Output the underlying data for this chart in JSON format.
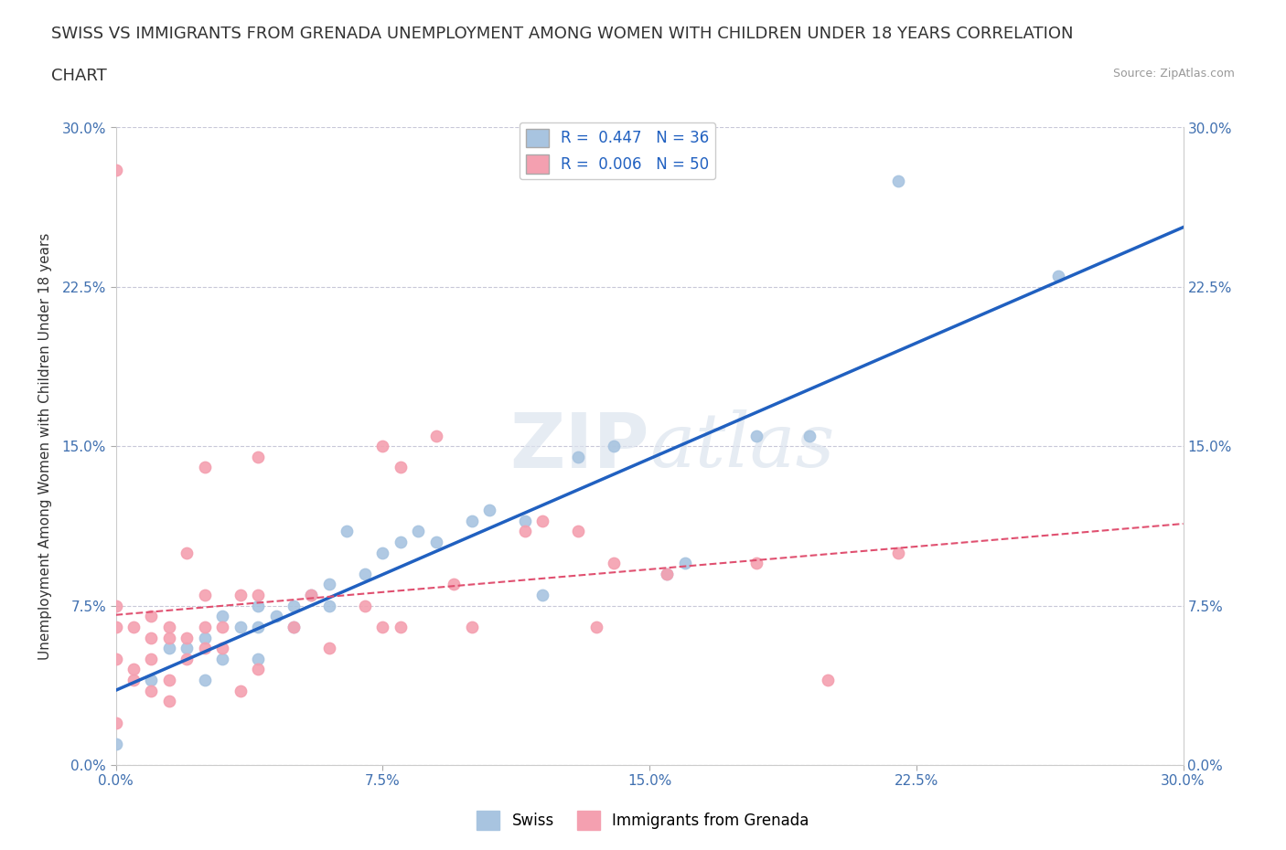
{
  "title_line1": "SWISS VS IMMIGRANTS FROM GRENADA UNEMPLOYMENT AMONG WOMEN WITH CHILDREN UNDER 18 YEARS CORRELATION",
  "title_line2": "CHART",
  "source_text": "Source: ZipAtlas.com",
  "ylabel": "Unemployment Among Women with Children Under 18 years",
  "xlim": [
    0.0,
    0.3
  ],
  "ylim": [
    0.0,
    0.3
  ],
  "xtick_labels": [
    "0.0%",
    "7.5%",
    "15.0%",
    "22.5%",
    "30.0%"
  ],
  "xtick_vals": [
    0.0,
    0.075,
    0.15,
    0.225,
    0.3
  ],
  "ytick_labels": [
    "0.0%",
    "7.5%",
    "15.0%",
    "22.5%",
    "30.0%"
  ],
  "ytick_vals": [
    0.0,
    0.075,
    0.15,
    0.225,
    0.3
  ],
  "swiss_color": "#a8c4e0",
  "grenada_color": "#f4a0b0",
  "swiss_line_color": "#2060c0",
  "grenada_line_color": "#e05070",
  "swiss_R": 0.447,
  "swiss_N": 36,
  "grenada_R": 0.006,
  "grenada_N": 50,
  "swiss_x": [
    0.0,
    0.01,
    0.015,
    0.02,
    0.025,
    0.025,
    0.03,
    0.03,
    0.035,
    0.04,
    0.04,
    0.04,
    0.045,
    0.05,
    0.05,
    0.055,
    0.06,
    0.06,
    0.065,
    0.07,
    0.075,
    0.08,
    0.085,
    0.09,
    0.1,
    0.105,
    0.115,
    0.12,
    0.13,
    0.14,
    0.155,
    0.16,
    0.18,
    0.195,
    0.22,
    0.265
  ],
  "swiss_y": [
    0.01,
    0.04,
    0.055,
    0.055,
    0.04,
    0.06,
    0.05,
    0.07,
    0.065,
    0.05,
    0.065,
    0.075,
    0.07,
    0.065,
    0.075,
    0.08,
    0.075,
    0.085,
    0.11,
    0.09,
    0.1,
    0.105,
    0.11,
    0.105,
    0.115,
    0.12,
    0.115,
    0.08,
    0.145,
    0.15,
    0.09,
    0.095,
    0.155,
    0.155,
    0.275,
    0.23
  ],
  "grenada_x": [
    0.0,
    0.0,
    0.0,
    0.0,
    0.0,
    0.005,
    0.005,
    0.005,
    0.01,
    0.01,
    0.01,
    0.01,
    0.015,
    0.015,
    0.015,
    0.015,
    0.02,
    0.02,
    0.02,
    0.025,
    0.025,
    0.025,
    0.025,
    0.03,
    0.03,
    0.035,
    0.035,
    0.04,
    0.04,
    0.04,
    0.05,
    0.055,
    0.06,
    0.07,
    0.075,
    0.075,
    0.08,
    0.08,
    0.09,
    0.095,
    0.1,
    0.115,
    0.12,
    0.13,
    0.135,
    0.14,
    0.155,
    0.18,
    0.2,
    0.22
  ],
  "grenada_y": [
    0.02,
    0.05,
    0.065,
    0.075,
    0.28,
    0.04,
    0.045,
    0.065,
    0.035,
    0.05,
    0.06,
    0.07,
    0.03,
    0.04,
    0.06,
    0.065,
    0.05,
    0.06,
    0.1,
    0.055,
    0.065,
    0.08,
    0.14,
    0.055,
    0.065,
    0.035,
    0.08,
    0.045,
    0.08,
    0.145,
    0.065,
    0.08,
    0.055,
    0.075,
    0.065,
    0.15,
    0.065,
    0.14,
    0.155,
    0.085,
    0.065,
    0.11,
    0.115,
    0.11,
    0.065,
    0.095,
    0.09,
    0.095,
    0.04,
    0.1
  ],
  "watermark_zip": "ZIP",
  "watermark_atlas": "atlas",
  "background_color": "#ffffff",
  "grid_color": "#c8c8d8",
  "title_fontsize": 13,
  "label_fontsize": 11,
  "tick_fontsize": 11,
  "legend_fontsize": 12
}
